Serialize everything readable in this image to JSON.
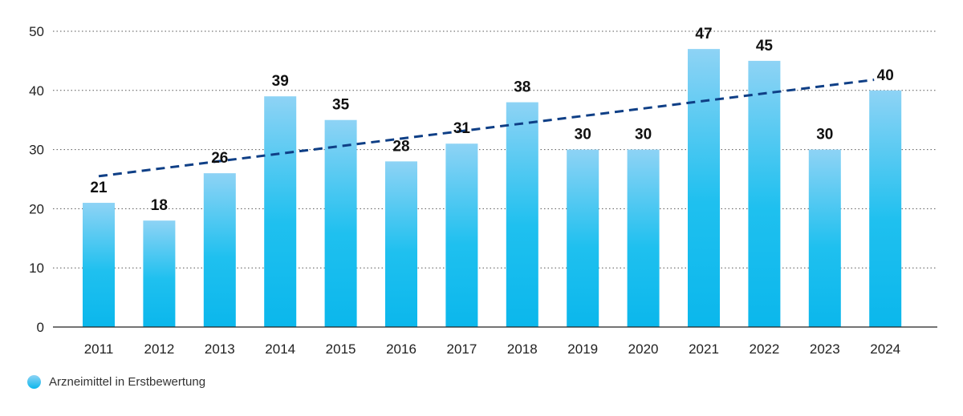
{
  "chart_data": {
    "type": "bar",
    "categories": [
      "2011",
      "2012",
      "2013",
      "2014",
      "2015",
      "2016",
      "2017",
      "2018",
      "2019",
      "2020",
      "2021",
      "2022",
      "2023",
      "2024"
    ],
    "series": [
      {
        "name": "Arzneimittel in Erstbewertung",
        "values": [
          21,
          18,
          26,
          39,
          35,
          28,
          31,
          38,
          30,
          30,
          47,
          45,
          30,
          40
        ]
      }
    ],
    "trendline": {
      "style": "dashed",
      "start_value": 25.5,
      "end_value": 41.8
    },
    "ylim": [
      0,
      50
    ],
    "yticks": [
      0,
      10,
      20,
      30,
      40,
      50
    ],
    "grid": "horizontal dotted",
    "legend_position": "bottom-left",
    "colors": {
      "bar_top": "#8ed3f5",
      "bar_bottom": "#0bb7ec",
      "trend": "#0f3f86",
      "text": "#111111"
    }
  }
}
